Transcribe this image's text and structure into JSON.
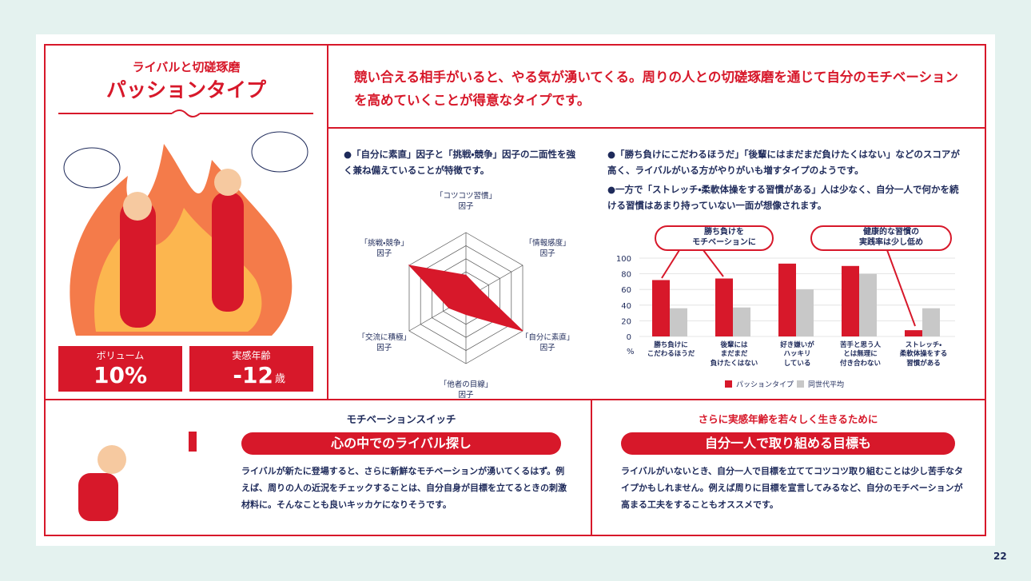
{
  "header": {
    "subtitle": "ライバルと切磋琢磨",
    "title": "パッションタイプ"
  },
  "stats": [
    {
      "label": "ボリューム",
      "value": "10%"
    },
    {
      "label": "実感年齢",
      "value": "-12",
      "unit": "歳"
    }
  ],
  "description": "競い合える相手がいると、やる気が湧いてくる。周りの人との切磋琢磨を通じて自分のモチベーションを高めていくことが得意なタイプです。",
  "radar_note": "●「自分に素直」因子と「挑戦・競争」因子の二面性を強く兼ね備えていることが特徴です。",
  "bar_notes": [
    "●「勝ち負けにこだわるほうだ」「後輩にはまだまだ負けたくはない」などのスコアが高く、ライバルがいる方がやりがいも増すタイプのようです。",
    "●一方で「ストレッチ・柔軟体操をする習慣がある」人は少なく、自分一人で何かを続ける習慣はあまり持っていない一面が想像されます。"
  ],
  "chart_data": [
    {
      "type": "radar",
      "categories": [
        "「コツコツ習慣」\n因子",
        "「情報感度」\n因子",
        "「自分に素直」\n因子",
        "「他者の目線」\n因子",
        "「交流に積極」\n因子",
        "「挑戦・競争」\n因子"
      ],
      "values": [
        35,
        25,
        100,
        25,
        30,
        100
      ],
      "rlim": [
        0,
        100
      ],
      "color": "#d7182a"
    },
    {
      "type": "bar",
      "categories": [
        "勝ち負けに\nこだわるほうだ",
        "後輩には\nまだまだ\n負けたくはない",
        "好き嫌いが\nハッキリ\nしている",
        "苦手と思う人\nとは無理に\n付き合わない",
        "ストレッチ・\n柔軟体操をする\n習慣がある"
      ],
      "series": [
        {
          "name": "パッションタイプ",
          "color": "#d7182a",
          "values": [
            72,
            74,
            93,
            90,
            8
          ]
        },
        {
          "name": "同世代平均",
          "color": "#c8c8c8",
          "values": [
            36,
            37,
            60,
            80,
            36
          ]
        }
      ],
      "ylim": [
        0,
        100
      ],
      "yticks": [
        0,
        20,
        40,
        60,
        80,
        100
      ],
      "y_unit": "%",
      "grid": true,
      "callouts": [
        "勝ち負けを\nモチベーションに",
        "健康的な習慣の\n実践率は少し低め"
      ]
    }
  ],
  "motivation": {
    "heading": "モチベーションスイッチ",
    "title": "心の中でのライバル探し",
    "text": "ライバルが新たに登場すると、さらに新鮮なモチベーションが湧いてくるはず。例えば、周りの人の近況をチェックすることは、自分自身が目標を立てるときの刺激材料に。そんなことも良いキッカケになりそうです。"
  },
  "tips": {
    "heading": "さらに実感年齢を若々しく生きるために",
    "title": "自分一人で取り組める目標も",
    "text": "ライバルがいないとき、自分一人で目標を立ててコツコツ取り組むことは少し苦手なタイプかもしれません。例えば周りに目標を宣言してみるなど、自分のモチベーションが高まる工夫をすることもオススメです。"
  },
  "page_number": "22"
}
